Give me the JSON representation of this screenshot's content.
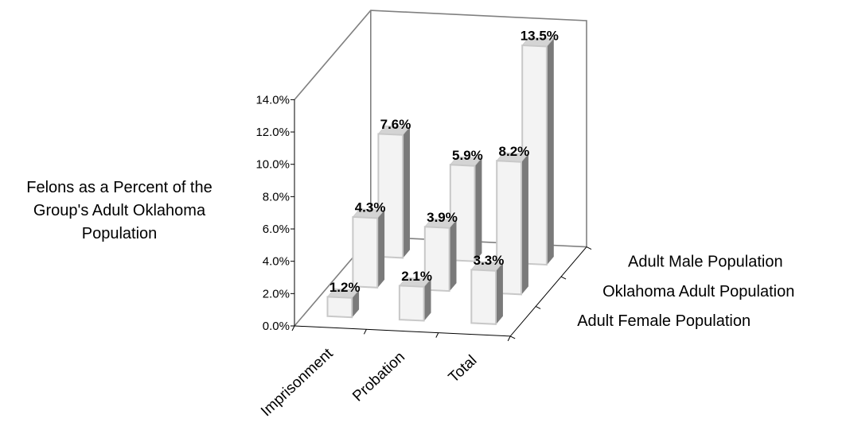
{
  "chart_data": {
    "type": "bar",
    "subtype": "3d-clustered-column",
    "categories": [
      "Imprisonment",
      "Probation",
      "Total"
    ],
    "series": [
      {
        "name": "Adult Male Population",
        "values": [
          7.6,
          5.9,
          13.5
        ]
      },
      {
        "name": "Oklahoma Adult Population",
        "values": [
          4.3,
          3.9,
          8.2
        ]
      },
      {
        "name": "Adult Female Population",
        "values": [
          1.2,
          2.1,
          3.3
        ]
      }
    ],
    "data_labels": {
      "Adult Male Population": [
        "7.6%",
        "5.9%",
        "13.5%"
      ],
      "Oklahoma Adult Population": [
        "4.3%",
        "3.9%",
        "8.2%"
      ],
      "Adult Female Population": [
        "1.2%",
        "2.1%",
        "3.3%"
      ]
    },
    "ylabel_lines": [
      "Felons as a Percent of the",
      "Group's Adult Oklahoma",
      "Population"
    ],
    "yticks": [
      0,
      2,
      4,
      6,
      8,
      10,
      12,
      14
    ],
    "ytick_labels": [
      "0.0%",
      "2.0%",
      "4.0%",
      "6.0%",
      "8.0%",
      "10.0%",
      "12.0%",
      "14.0%"
    ],
    "ylim": [
      0,
      14
    ],
    "grid": false,
    "legend": "series labels on depth axis (right side)",
    "colors": {
      "bar_front": "#f3f3f3",
      "bar_side": "#7a7a7a",
      "bar_top": "#d4d4d4",
      "bar_edge": "#c8c8c8",
      "axis": "#808080"
    }
  }
}
